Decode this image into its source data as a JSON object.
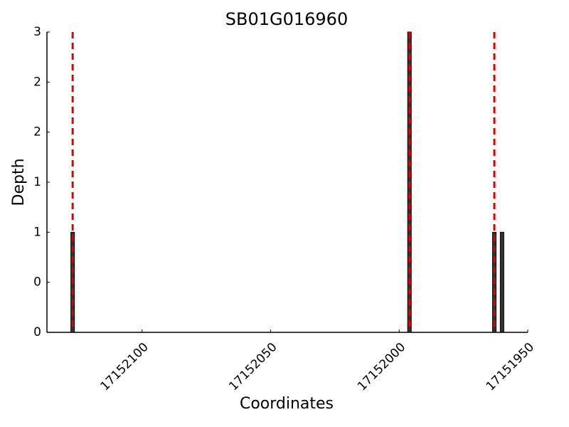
{
  "chart_data": {
    "type": "bar",
    "title": "SB01G016960",
    "xlabel": "Coordinates",
    "ylabel": "Depth",
    "x": [
      17152127,
      17151996,
      17151963,
      17151960
    ],
    "values": [
      1,
      3,
      1,
      1
    ],
    "color": "#333333",
    "edgecolor": "#000000",
    "markers": [
      17152127,
      17151996,
      17151963
    ],
    "marker_color": "#e00000",
    "xlim": [
      17152137,
      17151950
    ],
    "xticks": [
      17152100,
      17152050,
      17152000,
      17151950
    ],
    "ylim": [
      0,
      3
    ],
    "yticks": [
      0,
      {
        "value": 0.5,
        "label": "0"
      },
      1,
      {
        "value": 1.5,
        "label": "1"
      },
      2,
      {
        "value": 2.5,
        "label": "2"
      },
      3
    ]
  }
}
